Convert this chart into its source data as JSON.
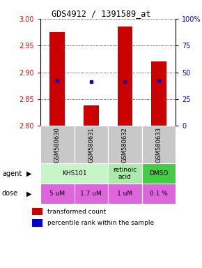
{
  "title": "GDS4912 / 1391589_at",
  "samples": [
    "GSM580630",
    "GSM580631",
    "GSM580632",
    "GSM580633"
  ],
  "bar_bottoms": [
    2.8,
    2.8,
    2.8,
    2.8
  ],
  "bar_tops": [
    2.975,
    2.838,
    2.985,
    2.92
  ],
  "bar_color": "#cc0000",
  "dot_values": [
    2.885,
    2.883,
    2.883,
    2.885
  ],
  "dot_color": "#0000cc",
  "ylim_left": [
    2.8,
    3.0
  ],
  "yticks_left": [
    2.8,
    2.85,
    2.9,
    2.95,
    3.0
  ],
  "ylim_right": [
    0,
    100
  ],
  "yticks_right": [
    0,
    25,
    50,
    75,
    100
  ],
  "yticklabels_right": [
    "0",
    "25",
    "50",
    "75",
    "100%"
  ],
  "agent_items": [
    {
      "cols": [
        0,
        1
      ],
      "text": "KHS101",
      "color": "#c8f5c8"
    },
    {
      "cols": [
        2
      ],
      "text": "retinoic\nacid",
      "color": "#aaeaaa"
    },
    {
      "cols": [
        3
      ],
      "text": "DMSO",
      "color": "#44cc44"
    }
  ],
  "dose_labels": [
    "5 uM",
    "1.7 uM",
    "1 uM",
    "0.1 %"
  ],
  "dose_color": "#dd66dd",
  "sample_bg_color": "#c8c8c8",
  "legend_bar_color": "#cc0000",
  "legend_dot_color": "#0000cc"
}
